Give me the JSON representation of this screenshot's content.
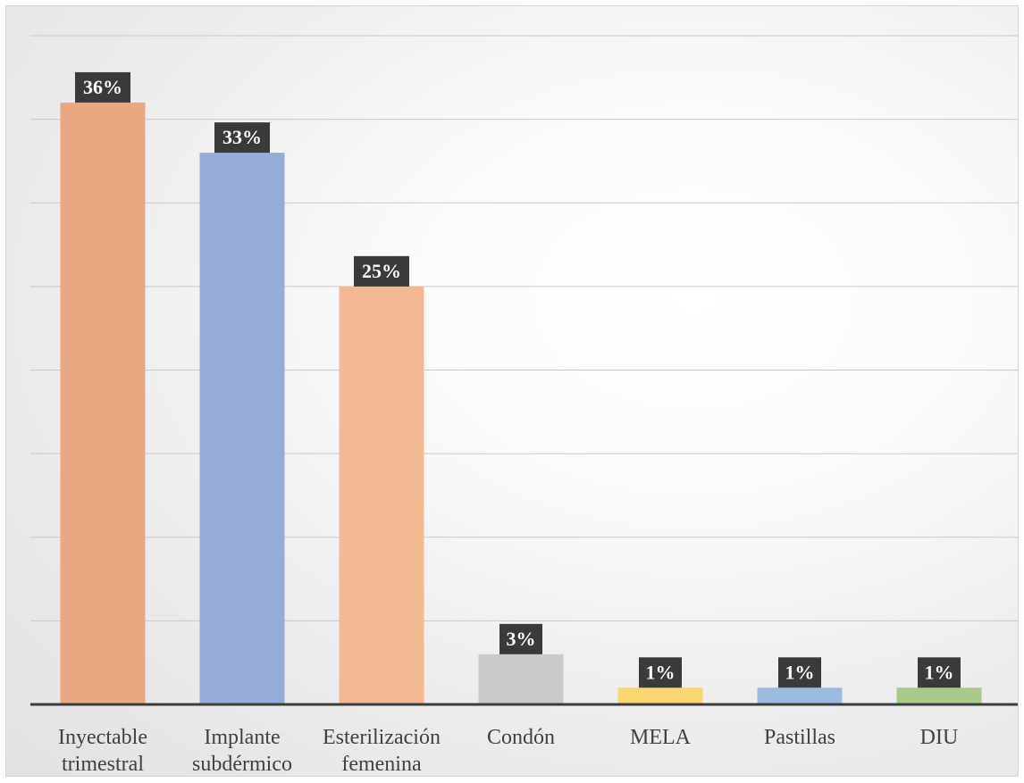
{
  "chart_data": {
    "type": "bar",
    "categories": [
      [
        "Inyectable",
        "trimestral"
      ],
      [
        "Implante",
        "subdérmico"
      ],
      [
        "Esterilización",
        "femenina"
      ],
      [
        "Condón"
      ],
      [
        "MELA"
      ],
      [
        "Pastillas"
      ],
      [
        "DIU"
      ]
    ],
    "values": [
      36,
      33,
      25,
      3,
      1,
      1,
      1
    ],
    "data_labels": [
      "36%",
      "33%",
      "25%",
      "3%",
      "1%",
      "1%",
      "1%"
    ],
    "bar_colors": [
      "#e8a882",
      "#95acd8",
      "#f4b893",
      "#cacaca",
      "#f8d670",
      "#9bbbe0",
      "#a8c98a"
    ],
    "ylim": [
      0,
      40
    ],
    "y_gridline_step": 5,
    "grid": true,
    "legend": "none",
    "title": "",
    "xlabel": "",
    "ylabel": ""
  }
}
